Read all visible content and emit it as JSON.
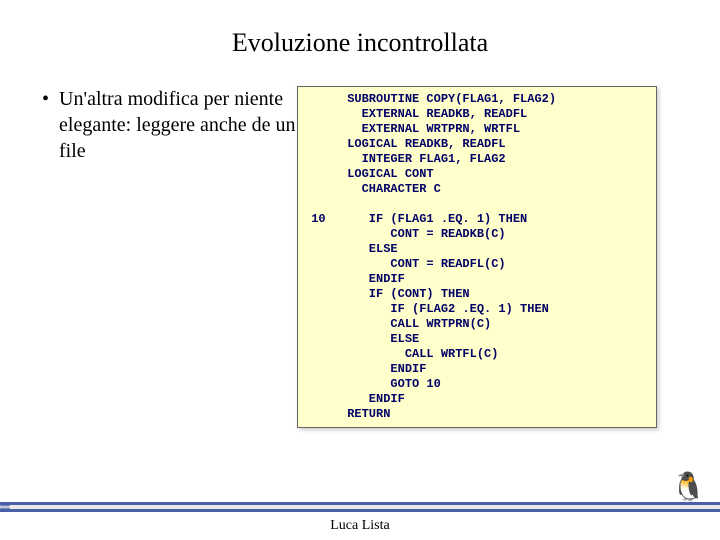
{
  "title": "Evoluzione incontrollata",
  "bullet": "Un'altra modifica per niente elegante: leggere anche de un file",
  "code": "      SUBROUTINE COPY(FLAG1, FLAG2)\n        EXTERNAL READKB, READFL\n        EXTERNAL WRTPRN, WRTFL\n      LOGICAL READKB, READFL\n        INTEGER FLAG1, FLAG2\n      LOGICAL CONT\n        CHARACTER C\n\n 10      IF (FLAG1 .EQ. 1) THEN\n            CONT = READKB(C)\n         ELSE\n            CONT = READFL(C)\n         ENDIF\n         IF (CONT) THEN\n            IF (FLAG2 .EQ. 1) THEN\n            CALL WRTPRN(C)\n            ELSE\n              CALL WRTFL(C)\n            ENDIF\n            GOTO 10\n         ENDIF\n      RETURN",
  "footer": "Luca Lista",
  "colors": {
    "code_text": "#000066",
    "code_background": "#ffffcc",
    "bar": "#4a5fa8"
  },
  "deco_glyph": "🐧"
}
